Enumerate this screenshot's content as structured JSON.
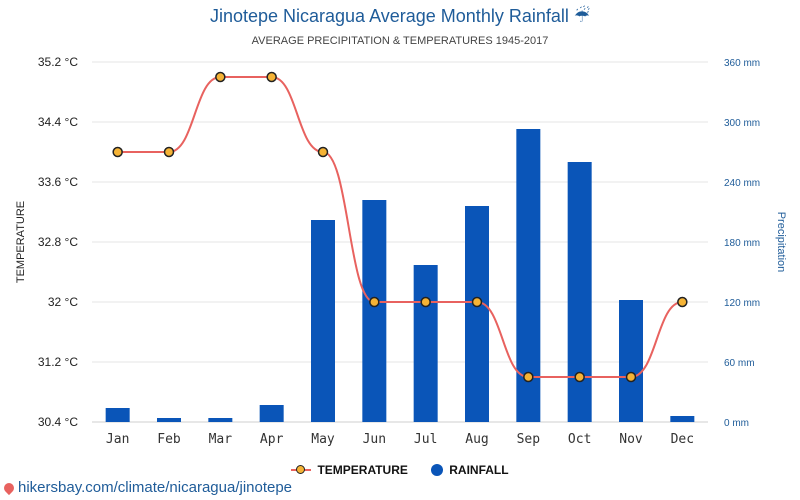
{
  "title": "Jinotepe Nicaragua Average Monthly Rainfall",
  "title_icon": "☔",
  "subtitle": "AVERAGE PRECIPITATION & TEMPERATURES 1945-2017",
  "colors": {
    "temperature_line": "#e8625f",
    "temperature_marker": "#f5b335",
    "rainfall_bar": "#0a55b8",
    "accent_text": "#1f5c99"
  },
  "legend": {
    "temperature_label": "TEMPERATURE",
    "rainfall_label": "RAINFALL"
  },
  "source_text": "hikersbay.com/climate/nicaragua/jinotepe",
  "chart_data": {
    "type": "bar",
    "categories": [
      "Jan",
      "Feb",
      "Mar",
      "Apr",
      "May",
      "Jun",
      "Jul",
      "Aug",
      "Sep",
      "Oct",
      "Nov",
      "Dec"
    ],
    "series": [
      {
        "name": "RAINFALL",
        "type": "bar",
        "axis": "right",
        "values": [
          14,
          4,
          4,
          17,
          202,
          222,
          157,
          216,
          293,
          260,
          122,
          6
        ]
      },
      {
        "name": "TEMPERATURE",
        "type": "line",
        "axis": "left",
        "values": [
          34.0,
          34.0,
          35.0,
          35.0,
          34.0,
          32.0,
          32.0,
          32.0,
          31.0,
          31.0,
          31.0,
          32.0
        ]
      }
    ],
    "ylabel_left": "TEMPERATURE",
    "ylabel_right": "Precipitation",
    "ylim_left": [
      30.4,
      35.2
    ],
    "ylim_right": [
      0,
      360
    ],
    "yticks_left": [
      "30.4 °C",
      "31.2 °C",
      "32 °C",
      "32.8 °C",
      "33.6 °C",
      "34.4 °C",
      "35.2 °C"
    ],
    "yticks_right": [
      "0 mm",
      "60 mm",
      "120 mm",
      "180 mm",
      "240 mm",
      "300 mm",
      "360 mm"
    ],
    "grid": true,
    "legend_position": "bottom-center"
  }
}
